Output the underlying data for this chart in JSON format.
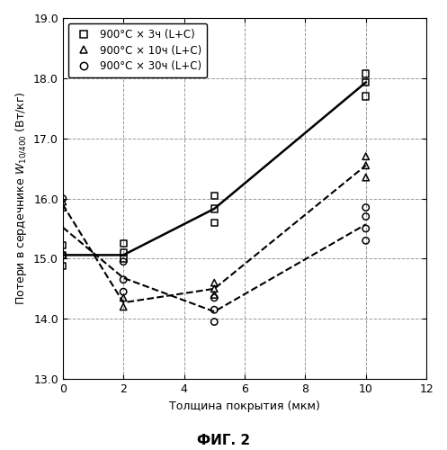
{
  "xlabel": "Толщина покрытия (мкм)",
  "ylabel": "Потери в сердечнике W10/400 (Вт/кг)",
  "ylabel_display": "Потери в сердечнике $W_{10/400}$ (Вт/кг)",
  "fig_caption": "ФИГ. 2",
  "xlim": [
    0,
    12
  ],
  "ylim": [
    13.0,
    19.0
  ],
  "xticks": [
    0,
    2,
    4,
    6,
    8,
    10,
    12
  ],
  "yticks": [
    13.0,
    14.0,
    15.0,
    16.0,
    17.0,
    18.0,
    19.0
  ],
  "series": [
    {
      "label": "900°C × 3ч (L+C)",
      "marker": "s",
      "line_x": [
        0,
        2,
        5,
        10
      ],
      "line_y": [
        15.06,
        15.06,
        15.83,
        17.93
      ],
      "linestyle": "-",
      "linewidth": 1.8,
      "scatter_x": [
        0,
        0,
        0,
        2,
        2,
        2,
        5,
        5,
        5,
        10,
        10,
        10
      ],
      "scatter_y": [
        14.88,
        15.06,
        15.22,
        15.0,
        15.1,
        15.25,
        15.6,
        15.83,
        16.05,
        17.7,
        17.93,
        18.07
      ]
    },
    {
      "label": "900°C × 10ч (L+C)",
      "marker": "^",
      "line_x": [
        0,
        2,
        5,
        10
      ],
      "line_y": [
        15.9,
        14.27,
        14.5,
        16.55
      ],
      "linestyle": "--",
      "linewidth": 1.5,
      "scatter_x": [
        0,
        0,
        2,
        2,
        5,
        5,
        5,
        10,
        10,
        10
      ],
      "scatter_y": [
        15.85,
        15.95,
        14.2,
        14.35,
        14.4,
        14.5,
        14.6,
        16.35,
        16.55,
        16.7
      ]
    },
    {
      "label": "900°C × 30ч (L+C)",
      "marker": "o",
      "line_x": [
        0,
        2,
        5,
        10
      ],
      "line_y": [
        15.52,
        14.68,
        14.12,
        15.57
      ],
      "linestyle": "--",
      "linewidth": 1.5,
      "scatter_x": [
        0,
        0,
        2,
        2,
        2,
        5,
        5,
        5,
        10,
        10,
        10,
        10
      ],
      "scatter_y": [
        15.05,
        16.0,
        14.45,
        14.65,
        14.95,
        13.95,
        14.15,
        14.35,
        15.3,
        15.5,
        15.7,
        15.85
      ]
    }
  ],
  "legend_labels": [
    "900°C × 3ч (L+C)",
    "900°C × 10ч (L+C)",
    "900°C × 30ч (L+C)"
  ],
  "background_color": "#ffffff",
  "grid_color": "#999999",
  "markersize": 28
}
